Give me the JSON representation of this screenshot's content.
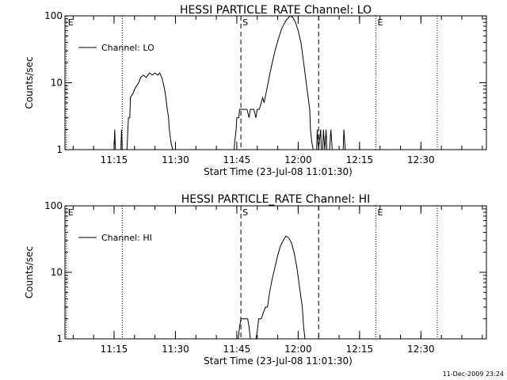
{
  "footer": {
    "timestamp": "11-Dec-2009 23:24"
  },
  "chart_data": [
    {
      "type": "line",
      "title": "HESSI PARTICLE_RATE Channel: LO",
      "xlabel": "Start Time (23-Jul-08 11:01:30)",
      "ylabel": "Counts/sec",
      "legend": {
        "label": "Channel: LO",
        "position": "top-left"
      },
      "y_scale": "log",
      "ylim": [
        1,
        100
      ],
      "yticks": [
        1,
        10,
        100
      ],
      "ytick_labels": [
        "1",
        "10",
        "100"
      ],
      "xlim": [
        "11:03:00",
        "12:46:00"
      ],
      "xticks": [
        {
          "label": "11:15",
          "x": "11:15"
        },
        {
          "label": "11:30",
          "x": "11:30"
        },
        {
          "label": "11:45",
          "x": "11:45"
        },
        {
          "label": "12:00",
          "x": "12:00"
        },
        {
          "label": "12:15",
          "x": "12:15"
        },
        {
          "label": "12:30",
          "x": "12:30"
        }
      ],
      "markers": [
        {
          "label": "E",
          "time": "11:03:20",
          "style": "dotted"
        },
        {
          "label": "",
          "time": "11:17:00",
          "style": "dotted"
        },
        {
          "label": "S",
          "time": "11:46:00",
          "style": "dashed"
        },
        {
          "label": "",
          "time": "12:05:00",
          "style": "dashed"
        },
        {
          "label": "E",
          "time": "12:19:00",
          "style": "dotted"
        },
        {
          "label": "",
          "time": "12:34:00",
          "style": "dotted"
        }
      ],
      "series": [
        {
          "name": "Channel: LO",
          "x": [
            "11:03:00",
            "11:15:00",
            "11:15:10",
            "11:15:20",
            "11:15:30",
            "11:16:40",
            "11:16:50",
            "11:17:00",
            "11:17:20",
            "11:18:10",
            "11:18:30",
            "11:18:50",
            "11:19:00",
            "11:19:40",
            "11:20:00",
            "11:21:00",
            "11:21:30",
            "11:22:10",
            "11:22:50",
            "11:23:40",
            "11:24:20",
            "11:25:00",
            "11:25:40",
            "11:26:10",
            "11:26:40",
            "11:27:00",
            "11:27:20",
            "11:27:40",
            "11:28:00",
            "11:28:20",
            "11:28:30",
            "11:28:50",
            "11:29:00",
            "11:29:20",
            "11:29:40",
            "11:30:00",
            "11:44:20",
            "11:44:30",
            "11:44:50",
            "11:45:00",
            "11:45:30",
            "11:45:40",
            "11:46:00",
            "11:46:20",
            "11:47:00",
            "11:47:30",
            "11:48:00",
            "11:48:20",
            "11:49:10",
            "11:49:40",
            "11:50:00",
            "11:50:30",
            "11:51:20",
            "11:51:40",
            "11:52:20",
            "11:52:40",
            "11:53:00",
            "11:53:40",
            "11:54:20",
            "11:55:10",
            "11:56:00",
            "11:57:00",
            "11:58:00",
            "11:58:40",
            "11:59:20",
            "12:00:00",
            "12:00:40",
            "12:01:20",
            "12:02:10",
            "12:02:50",
            "12:03:00",
            "12:03:20",
            "12:03:40",
            "12:04:10",
            "12:04:30",
            "12:04:40",
            "12:05:00",
            "12:05:30",
            "12:05:40",
            "12:06:00",
            "12:06:10",
            "12:06:30",
            "12:06:50",
            "12:07:00",
            "12:07:20",
            "12:07:40",
            "12:08:00",
            "12:08:20",
            "12:08:30",
            "12:08:50",
            "12:11:00",
            "12:11:10",
            "12:11:30",
            "12:11:40",
            "12:12:00",
            "12:46:00"
          ],
          "y": [
            1,
            1,
            2,
            1,
            1,
            1,
            2,
            1,
            1,
            1,
            3,
            3,
            6,
            7,
            8,
            10,
            12,
            13,
            12,
            14,
            13,
            14,
            13,
            14,
            12,
            10,
            8,
            6,
            4,
            3,
            2,
            1.4,
            1.2,
            1,
            1,
            1,
            1,
            1.3,
            2,
            3,
            3,
            4,
            4,
            4,
            4,
            4,
            3,
            4,
            4,
            3,
            4,
            4,
            6,
            5,
            8,
            10,
            13,
            20,
            30,
            45,
            65,
            85,
            100,
            95,
            80,
            60,
            40,
            20,
            8,
            4,
            2,
            1.3,
            1,
            1,
            1,
            2,
            1,
            2,
            1,
            1,
            2,
            1,
            2,
            1,
            1,
            1,
            2,
            1,
            1,
            1,
            1,
            2,
            1,
            1,
            1,
            1
          ]
        }
      ]
    },
    {
      "type": "line",
      "title": "HESSI PARTICLE_RATE Channel: HI",
      "xlabel": "Start Time (23-Jul-08 11:01:30)",
      "ylabel": "Counts/sec",
      "legend": {
        "label": "Channel: HI",
        "position": "top-left"
      },
      "y_scale": "log",
      "ylim": [
        1,
        100
      ],
      "yticks": [
        1,
        10,
        100
      ],
      "ytick_labels": [
        "1",
        "10",
        "100"
      ],
      "xlim": [
        "11:03:00",
        "12:46:00"
      ],
      "xticks": [
        {
          "label": "11:15",
          "x": "11:15"
        },
        {
          "label": "11:30",
          "x": "11:30"
        },
        {
          "label": "11:45",
          "x": "11:45"
        },
        {
          "label": "12:00",
          "x": "12:00"
        },
        {
          "label": "12:15",
          "x": "12:15"
        },
        {
          "label": "12:30",
          "x": "12:30"
        }
      ],
      "markers": [
        {
          "label": "E",
          "time": "11:03:20",
          "style": "dotted"
        },
        {
          "label": "",
          "time": "11:17:00",
          "style": "dotted"
        },
        {
          "label": "S",
          "time": "11:46:00",
          "style": "dashed"
        },
        {
          "label": "",
          "time": "12:05:00",
          "style": "dashed"
        },
        {
          "label": "E",
          "time": "12:19:00",
          "style": "dotted"
        },
        {
          "label": "",
          "time": "12:34:00",
          "style": "dotted"
        }
      ],
      "series": [
        {
          "name": "Channel: HI",
          "x": [
            "11:03:00",
            "11:45:20",
            "11:45:40",
            "11:46:00",
            "11:46:20",
            "11:47:00",
            "11:47:40",
            "11:48:00",
            "11:48:20",
            "11:48:40",
            "11:49:00",
            "11:49:40",
            "11:50:00",
            "11:50:20",
            "11:51:00",
            "11:51:30",
            "11:52:00",
            "11:52:30",
            "11:53:00",
            "11:53:40",
            "11:54:20",
            "11:55:00",
            "11:55:40",
            "11:56:20",
            "11:57:00",
            "11:57:40",
            "11:58:20",
            "11:59:00",
            "11:59:40",
            "12:00:20",
            "12:01:00",
            "12:01:20",
            "12:01:40",
            "12:02:00",
            "12:46:00"
          ],
          "y": [
            1,
            1,
            1.5,
            2,
            2,
            2,
            2,
            1.5,
            1,
            1,
            1,
            1,
            1.3,
            2,
            2,
            2.5,
            3,
            3,
            5,
            8,
            12,
            18,
            25,
            30,
            35,
            33,
            28,
            20,
            12,
            6,
            3,
            1.5,
            1,
            1,
            1
          ]
        }
      ]
    }
  ]
}
